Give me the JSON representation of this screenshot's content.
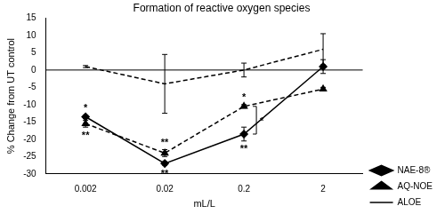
{
  "chart_data": {
    "type": "line",
    "title": "Formation of reactive oxygen species",
    "x_label": "mL/L",
    "y_label": "% Change from UT control",
    "categories": [
      "0.002",
      "0.02",
      "0.2",
      "2"
    ],
    "ylim": [
      -30,
      15
    ],
    "yticks": [
      -30,
      -25,
      -20,
      -15,
      -10,
      -5,
      0,
      5,
      10,
      15
    ],
    "grid": false,
    "legend": "right",
    "series": [
      {
        "name": "NAE-8®",
        "color": "#000000",
        "marker": "diamond",
        "line_style": "solid",
        "values": [
          -13.5,
          -27,
          -18.5,
          1
        ],
        "errors": [
          0.5,
          0.5,
          2,
          2
        ]
      },
      {
        "name": "AQ-NOE",
        "color": "#000000",
        "marker": "triangle",
        "line_style": "dashed",
        "values": [
          -15.5,
          -24,
          -10.5,
          -5.5
        ],
        "errors": [
          1,
          1,
          0.5,
          0.5
        ]
      },
      {
        "name": "ALOE",
        "color": "#000000",
        "marker": "none",
        "line_style": "dashed",
        "values": [
          1,
          -4,
          0,
          6
        ],
        "errors": [
          0.3,
          8.5,
          2,
          4.5
        ]
      }
    ],
    "annotations": [
      {
        "text": "*",
        "category": "0.002",
        "series": "NAE-8®",
        "side": "above"
      },
      {
        "text": "**",
        "category": "0.002",
        "series": "AQ-NOE",
        "side": "below"
      },
      {
        "text": "**",
        "category": "0.02",
        "series": "AQ-NOE",
        "side": "above"
      },
      {
        "text": "**",
        "category": "0.02",
        "series": "NAE-8®",
        "side": "below"
      },
      {
        "text": "*",
        "category": "0.2",
        "series": "AQ-NOE",
        "side": "above"
      },
      {
        "text": "**",
        "category": "0.2",
        "series": "NAE-8®",
        "side": "below"
      },
      {
        "text": "*",
        "category": "0.2",
        "between": [
          "AQ-NOE",
          "NAE-8®"
        ]
      }
    ]
  }
}
